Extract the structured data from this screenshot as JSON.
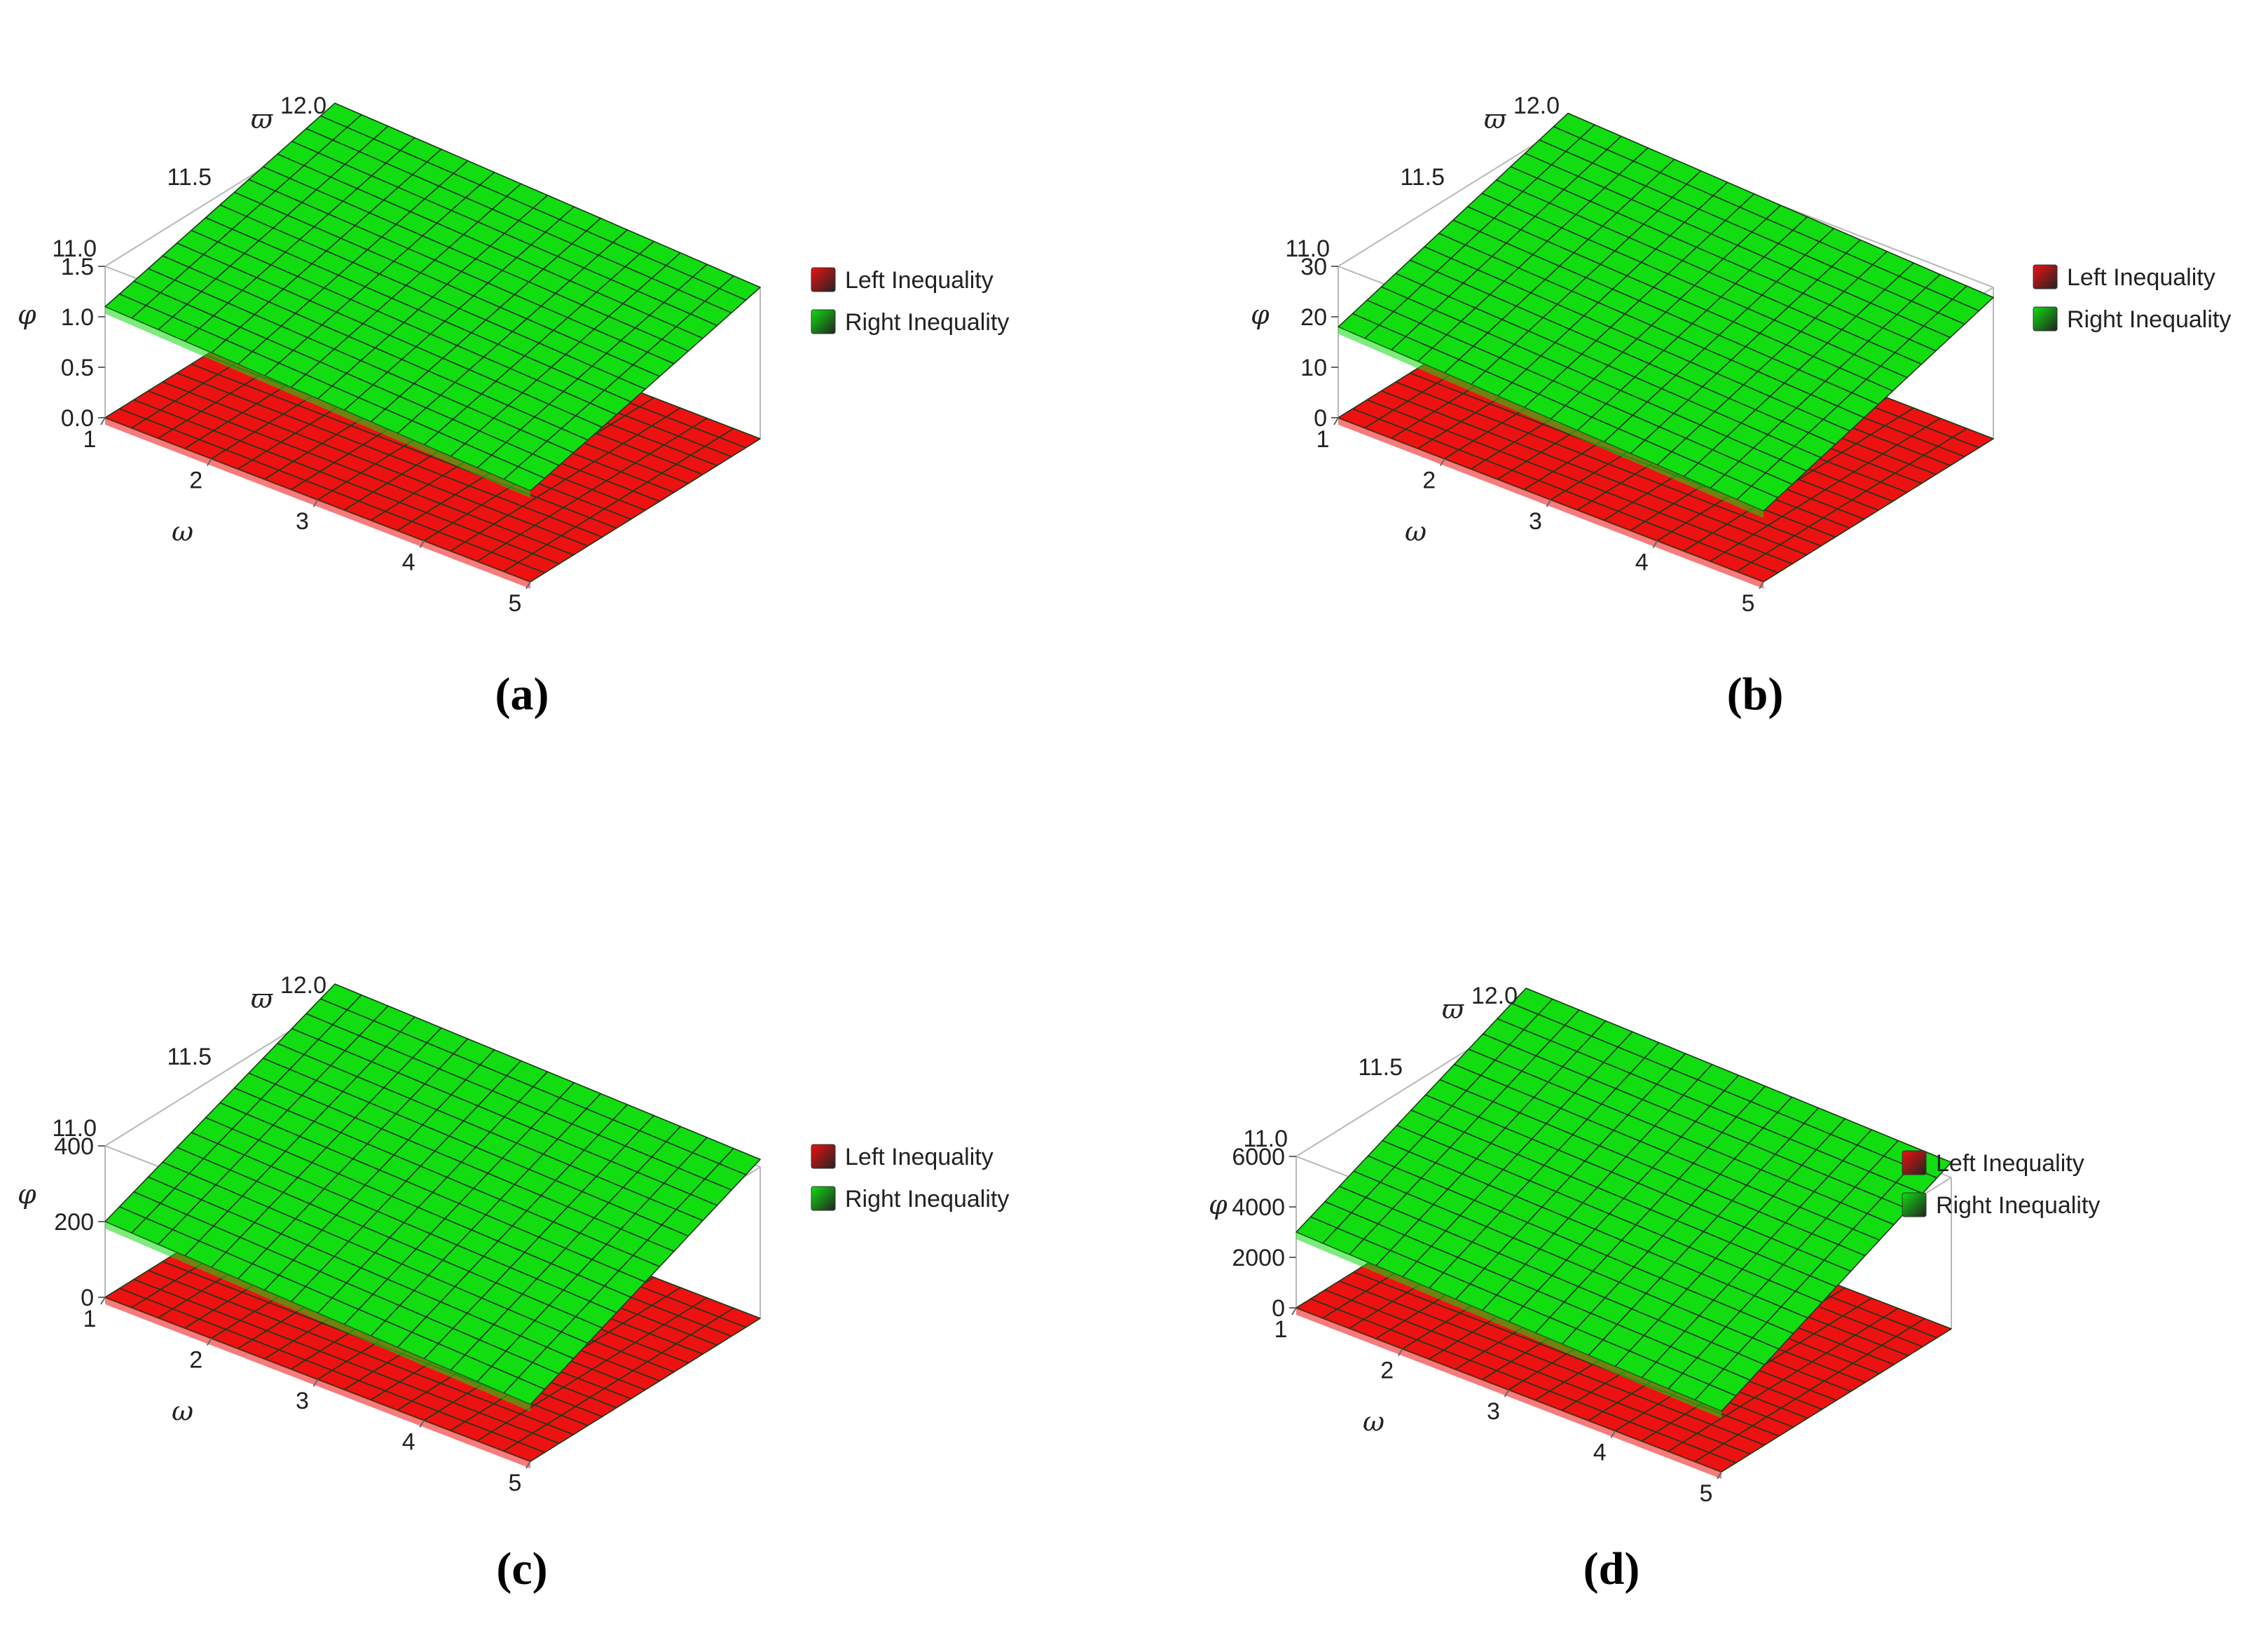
{
  "legend": {
    "position": "right",
    "entries": [
      {
        "label": "Left Inequality",
        "color": "#ee1111"
      },
      {
        "label": "Right Inequality",
        "color": "#11dd11"
      }
    ]
  },
  "chart_data": [
    {
      "panel": "a",
      "caption": "(a)",
      "type": "surface3d",
      "x_axis": {
        "label": "ω",
        "range": [
          1,
          5
        ],
        "ticks": [
          "1",
          "2",
          "3",
          "4",
          "5"
        ]
      },
      "y_axis": {
        "label": "ϖ",
        "range": [
          11.0,
          12.0
        ],
        "ticks": [
          "11.0",
          "11.5",
          "12.0"
        ]
      },
      "z_axis": {
        "label": "φ",
        "range": [
          0,
          1.5
        ],
        "ticks": [
          "0.0",
          "0.5",
          "1.0",
          "1.5"
        ]
      },
      "series": [
        {
          "name": "Left Inequality",
          "color": "#ee1111",
          "corners": {
            "x1_y11": 0,
            "x5_y11": 0,
            "x1_y12": 0,
            "x5_y12": 0
          }
        },
        {
          "name": "Right Inequality",
          "color": "#11dd11",
          "corners": {
            "x1_y11": 1.1,
            "x5_y11": 0.9,
            "x1_y12": 1.7,
            "x5_y12": 1.5
          }
        }
      ]
    },
    {
      "panel": "b",
      "caption": "(b)",
      "type": "surface3d",
      "x_axis": {
        "label": "ω",
        "range": [
          1,
          5
        ],
        "ticks": [
          "1",
          "2",
          "3",
          "4",
          "5"
        ]
      },
      "y_axis": {
        "label": "ϖ",
        "range": [
          11.0,
          12.0
        ],
        "ticks": [
          "11.0",
          "11.5",
          "12.0"
        ]
      },
      "z_axis": {
        "label": "φ",
        "range": [
          0,
          30
        ],
        "ticks": [
          "0",
          "10",
          "20",
          "30"
        ]
      },
      "series": [
        {
          "name": "Left Inequality",
          "color": "#ee1111",
          "corners": {
            "x1_y11": 0,
            "x5_y11": 0,
            "x1_y12": 0,
            "x5_y12": 0
          }
        },
        {
          "name": "Right Inequality",
          "color": "#11dd11",
          "corners": {
            "x1_y11": 18,
            "x5_y11": 14,
            "x1_y12": 32,
            "x5_y12": 28
          }
        }
      ]
    },
    {
      "panel": "c",
      "caption": "(c)",
      "type": "surface3d",
      "x_axis": {
        "label": "ω",
        "range": [
          1,
          5
        ],
        "ticks": [
          "1",
          "2",
          "3",
          "4",
          "5"
        ]
      },
      "y_axis": {
        "label": "ϖ",
        "range": [
          11.0,
          12.0
        ],
        "ticks": [
          "11.0",
          "11.5",
          "12.0"
        ]
      },
      "z_axis": {
        "label": "φ",
        "range": [
          0,
          400
        ],
        "ticks": [
          "0",
          "200",
          "400"
        ]
      },
      "series": [
        {
          "name": "Left Inequality",
          "color": "#ee1111",
          "corners": {
            "x1_y11": 0,
            "x5_y11": 0,
            "x1_y12": 0,
            "x5_y12": 0
          }
        },
        {
          "name": "Right Inequality",
          "color": "#11dd11",
          "corners": {
            "x1_y11": 200,
            "x5_y11": 150,
            "x1_y12": 450,
            "x5_y12": 420
          }
        }
      ]
    },
    {
      "panel": "d",
      "caption": "(d)",
      "type": "surface3d",
      "x_axis": {
        "label": "ω",
        "range": [
          1,
          5
        ],
        "ticks": [
          "1",
          "2",
          "3",
          "4",
          "5"
        ]
      },
      "y_axis": {
        "label": "ϖ",
        "range": [
          11.0,
          12.0
        ],
        "ticks": [
          "11.0",
          "11.5",
          "12.0"
        ]
      },
      "z_axis": {
        "label": "φ",
        "range": [
          0,
          6000
        ],
        "ticks": [
          "0",
          "2000",
          "4000",
          "6000"
        ]
      },
      "series": [
        {
          "name": "Left Inequality",
          "color": "#ee1111",
          "corners": {
            "x1_y11": 0,
            "x5_y11": 0,
            "x1_y12": 0,
            "x5_y12": 0
          }
        },
        {
          "name": "Right Inequality",
          "color": "#11dd11",
          "corners": {
            "x1_y11": 3000,
            "x5_y11": 2400,
            "x1_y12": 7000,
            "x5_y12": 6600
          }
        }
      ]
    }
  ]
}
